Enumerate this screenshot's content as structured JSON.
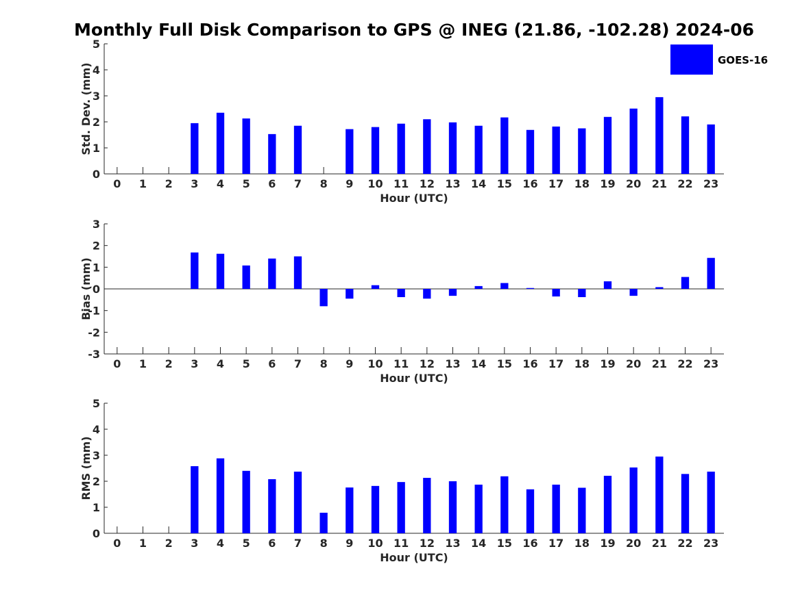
{
  "title": "Monthly Full Disk Comparison to GPS @ INEG (21.86, -102.28) 2024-06",
  "legend": {
    "label": "GOES-16",
    "color": "#0000ff",
    "position": "top-right"
  },
  "chart_data": [
    {
      "type": "bar",
      "xlabel": "Hour (UTC)",
      "ylabel": "Std. Dev. (mm)",
      "ylim": [
        0,
        5
      ],
      "yticks": [
        0,
        1,
        2,
        3,
        4,
        5
      ],
      "categories": [
        "0",
        "1",
        "2",
        "3",
        "4",
        "5",
        "6",
        "7",
        "8",
        "9",
        "10",
        "11",
        "12",
        "13",
        "14",
        "15",
        "16",
        "17",
        "18",
        "19",
        "20",
        "21",
        "22",
        "23"
      ],
      "series": [
        {
          "name": "GOES-16",
          "values": [
            null,
            null,
            null,
            1.95,
            2.35,
            2.13,
            1.53,
            1.85,
            null,
            1.72,
            1.8,
            1.93,
            2.1,
            1.98,
            1.85,
            2.17,
            1.69,
            1.82,
            1.75,
            2.19,
            2.51,
            2.95,
            2.21,
            1.9
          ]
        }
      ],
      "grid": false
    },
    {
      "type": "bar",
      "xlabel": "Hour (UTC)",
      "ylabel": "Bias (mm)",
      "ylim": [
        -3,
        3
      ],
      "yticks": [
        -3,
        -2,
        -1,
        0,
        1,
        2,
        3
      ],
      "categories": [
        "0",
        "1",
        "2",
        "3",
        "4",
        "5",
        "6",
        "7",
        "8",
        "9",
        "10",
        "11",
        "12",
        "13",
        "14",
        "15",
        "16",
        "17",
        "18",
        "19",
        "20",
        "21",
        "22",
        "23"
      ],
      "series": [
        {
          "name": "GOES-16",
          "values": [
            null,
            null,
            null,
            1.68,
            1.62,
            1.08,
            1.4,
            1.5,
            -0.8,
            -0.45,
            0.17,
            -0.38,
            -0.45,
            -0.32,
            0.13,
            0.27,
            0.04,
            -0.35,
            -0.38,
            0.35,
            -0.32,
            0.08,
            0.55,
            1.43
          ]
        }
      ],
      "grid": false
    },
    {
      "type": "bar",
      "xlabel": "Hour (UTC)",
      "ylabel": "RMS (mm)",
      "ylim": [
        0,
        5
      ],
      "yticks": [
        0,
        1,
        2,
        3,
        4,
        5
      ],
      "categories": [
        "0",
        "1",
        "2",
        "3",
        "4",
        "5",
        "6",
        "7",
        "8",
        "9",
        "10",
        "11",
        "12",
        "13",
        "14",
        "15",
        "16",
        "17",
        "18",
        "19",
        "20",
        "21",
        "22",
        "23"
      ],
      "series": [
        {
          "name": "GOES-16",
          "values": [
            null,
            null,
            null,
            2.58,
            2.88,
            2.4,
            2.08,
            2.37,
            0.79,
            1.76,
            1.82,
            1.97,
            2.13,
            2.0,
            1.87,
            2.19,
            1.69,
            1.87,
            1.75,
            2.21,
            2.53,
            2.95,
            2.28,
            2.37
          ]
        }
      ],
      "grid": false
    }
  ]
}
